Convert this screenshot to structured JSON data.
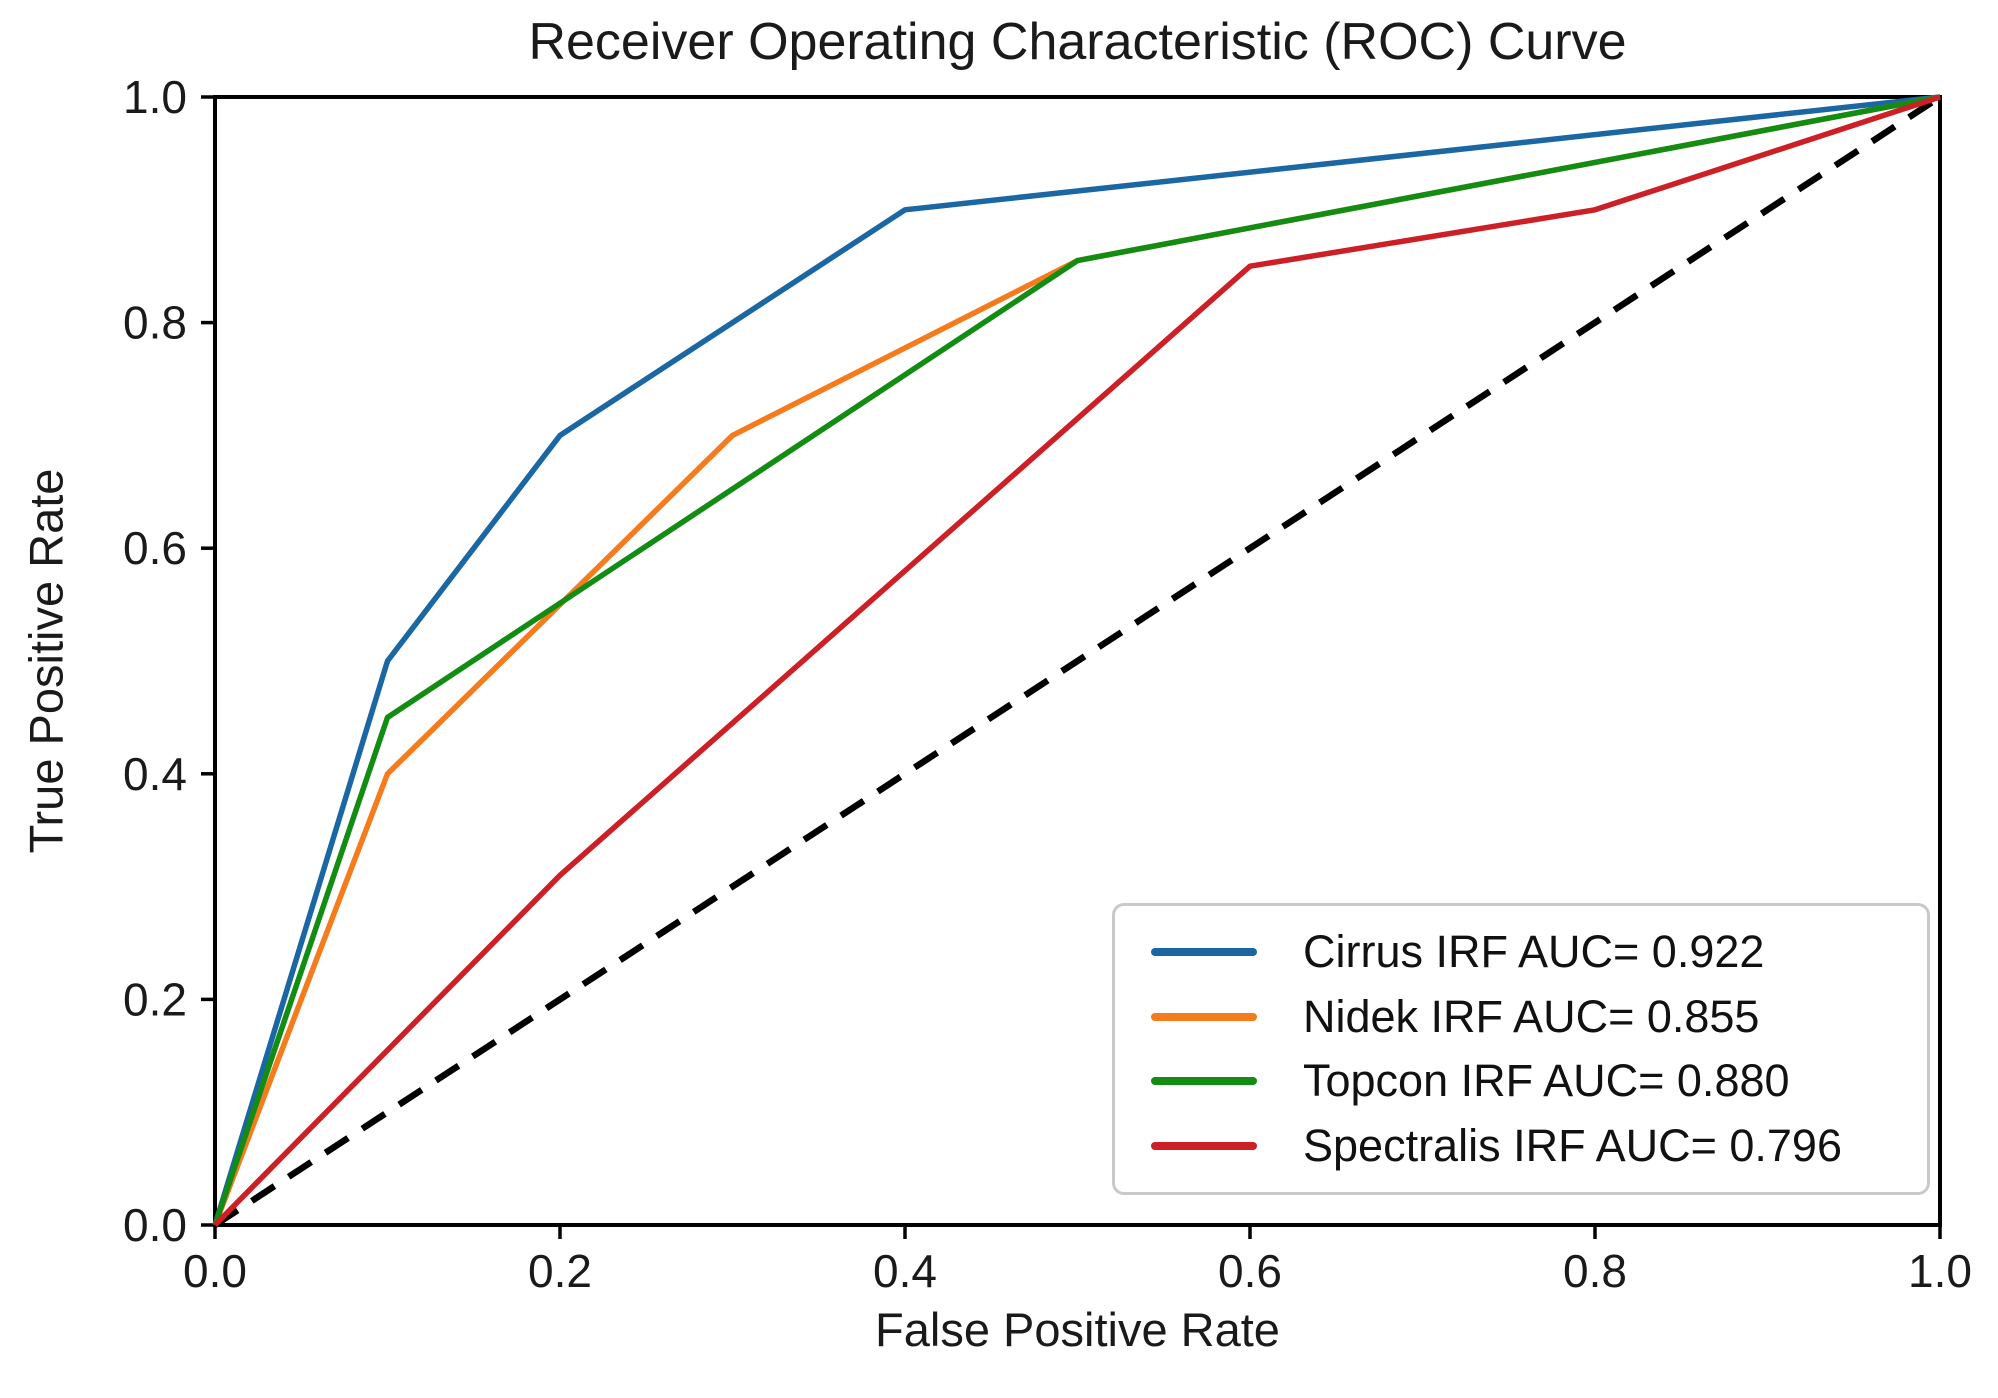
{
  "chart_data": {
    "type": "line",
    "title": "Receiver Operating Characteristic (ROC) Curve",
    "xlabel": "False Positive Rate",
    "ylabel": "True Positive Rate",
    "xlim": [
      0.0,
      1.0
    ],
    "ylim": [
      0.0,
      1.0
    ],
    "xticks": [
      0.0,
      0.2,
      0.4,
      0.6,
      0.8,
      1.0
    ],
    "xtick_labels": [
      "0.0",
      "0.2",
      "0.4",
      "0.6",
      "0.8",
      "1.0"
    ],
    "yticks": [
      0.0,
      0.2,
      0.4,
      0.6,
      0.8,
      1.0
    ],
    "ytick_labels": [
      "0.0",
      "0.2",
      "0.4",
      "0.6",
      "0.8",
      "1.0"
    ],
    "grid": false,
    "legend_position": "lower right",
    "series": [
      {
        "id": "cirrus",
        "label": "Cirrus IRF AUC= 0.922",
        "auc": 0.922,
        "color": "#1a67a3",
        "points": [
          [
            0.0,
            0.0
          ],
          [
            0.1,
            0.5
          ],
          [
            0.2,
            0.7
          ],
          [
            0.4,
            0.9
          ],
          [
            1.0,
            1.0
          ]
        ]
      },
      {
        "id": "nidek",
        "label": "Nidek IRF AUC= 0.855",
        "auc": 0.855,
        "color": "#f57b1d",
        "points": [
          [
            0.0,
            0.0
          ],
          [
            0.1,
            0.4
          ],
          [
            0.3,
            0.7
          ],
          [
            0.5,
            0.855
          ],
          [
            1.0,
            1.0
          ]
        ]
      },
      {
        "id": "topcon",
        "label": "Topcon IRF AUC= 0.880",
        "auc": 0.88,
        "color": "#128c12",
        "points": [
          [
            0.0,
            0.0
          ],
          [
            0.1,
            0.45
          ],
          [
            0.5,
            0.855
          ],
          [
            1.0,
            1.0
          ]
        ]
      },
      {
        "id": "spectralis",
        "label": "Spectralis IRF AUC= 0.796",
        "auc": 0.796,
        "color": "#cc1f26",
        "points": [
          [
            0.0,
            0.0
          ],
          [
            0.2,
            0.31
          ],
          [
            0.6,
            0.85
          ],
          [
            0.8,
            0.9
          ],
          [
            1.0,
            1.0
          ]
        ]
      }
    ],
    "reference_line": {
      "id": "chance-diagonal",
      "style": "dashed",
      "color": "#000000",
      "points": [
        [
          0.0,
          0.0
        ],
        [
          1.0,
          1.0
        ]
      ]
    }
  },
  "colors": {
    "text": "#1a1a1a",
    "frame": "#000000",
    "legend_border": "#c9c9c9",
    "background": "#ffffff"
  }
}
